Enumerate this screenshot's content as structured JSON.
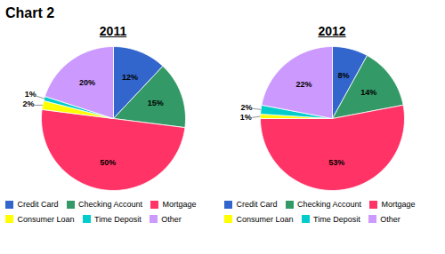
{
  "title": "Chart 2",
  "chart_data": [
    {
      "type": "pie",
      "title": "2011",
      "categories": [
        "Credit Card",
        "Checking Account",
        "Mortgage",
        "Consumer Loan",
        "Time Deposit",
        "Other"
      ],
      "values": [
        12,
        15,
        50,
        2,
        1,
        20
      ],
      "value_labels": [
        "12%",
        "15%",
        "50%",
        "2%",
        "1%",
        "20%"
      ],
      "colors": [
        "#3366CC",
        "#339966",
        "#FF3366",
        "#FFFF00",
        "#00CCCC",
        "#CC99FF"
      ],
      "data_labels": true,
      "legend": "bottom"
    },
    {
      "type": "pie",
      "title": "2012",
      "categories": [
        "Credit Card",
        "Checking Account",
        "Mortgage",
        "Consumer Loan",
        "Time Deposit",
        "Other"
      ],
      "values": [
        8,
        14,
        53,
        1,
        2,
        22
      ],
      "value_labels": [
        "8%",
        "14%",
        "53%",
        "1%",
        "2%",
        "22%"
      ],
      "colors": [
        "#3366CC",
        "#339966",
        "#FF3366",
        "#FFFF00",
        "#00CCCC",
        "#CC99FF"
      ],
      "data_labels": true,
      "legend": "bottom"
    }
  ]
}
